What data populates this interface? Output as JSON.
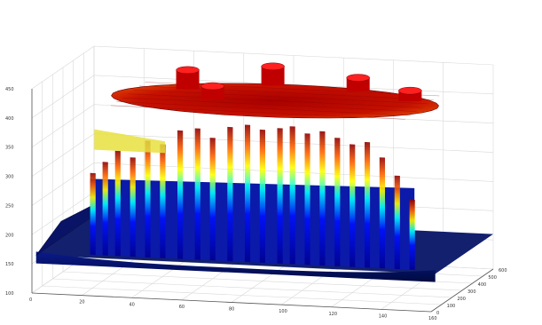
{
  "chart_data": {
    "type": "surface",
    "title": "",
    "xlabel": "",
    "ylabel": "",
    "zlabel": "",
    "x_ticks": [
      "0",
      "20",
      "40",
      "60",
      "80",
      "100",
      "120",
      "140",
      "160"
    ],
    "y_ticks": [
      "0",
      "100",
      "200",
      "300",
      "400",
      "500",
      "600"
    ],
    "z_ticks": [
      "100",
      "150",
      "200",
      "250",
      "300",
      "350",
      "400",
      "450"
    ],
    "xlim": [
      0,
      160
    ],
    "ylim": [
      0,
      600
    ],
    "zlim": [
      100,
      450
    ],
    "grid": true,
    "colormap": "jet",
    "surface": {
      "base_level": 160,
      "plateau_level": 410,
      "plateau_x_range": [
        20,
        150
      ],
      "plateau_y_range": [
        80,
        520
      ],
      "peak_bumps_z": [
        440,
        440,
        430,
        425,
        430
      ],
      "bar_slices_x": [
        20,
        25,
        30,
        36,
        42,
        48,
        55,
        62,
        68,
        75,
        82,
        88,
        95,
        100,
        106,
        112,
        118,
        124,
        130,
        136,
        142,
        148
      ],
      "bar_slices_z": [
        300,
        320,
        340,
        330,
        360,
        355,
        380,
        385,
        370,
        390,
        395,
        388,
        392,
        396,
        385,
        390,
        380,
        370,
        375,
        350,
        320,
        280
      ]
    }
  }
}
